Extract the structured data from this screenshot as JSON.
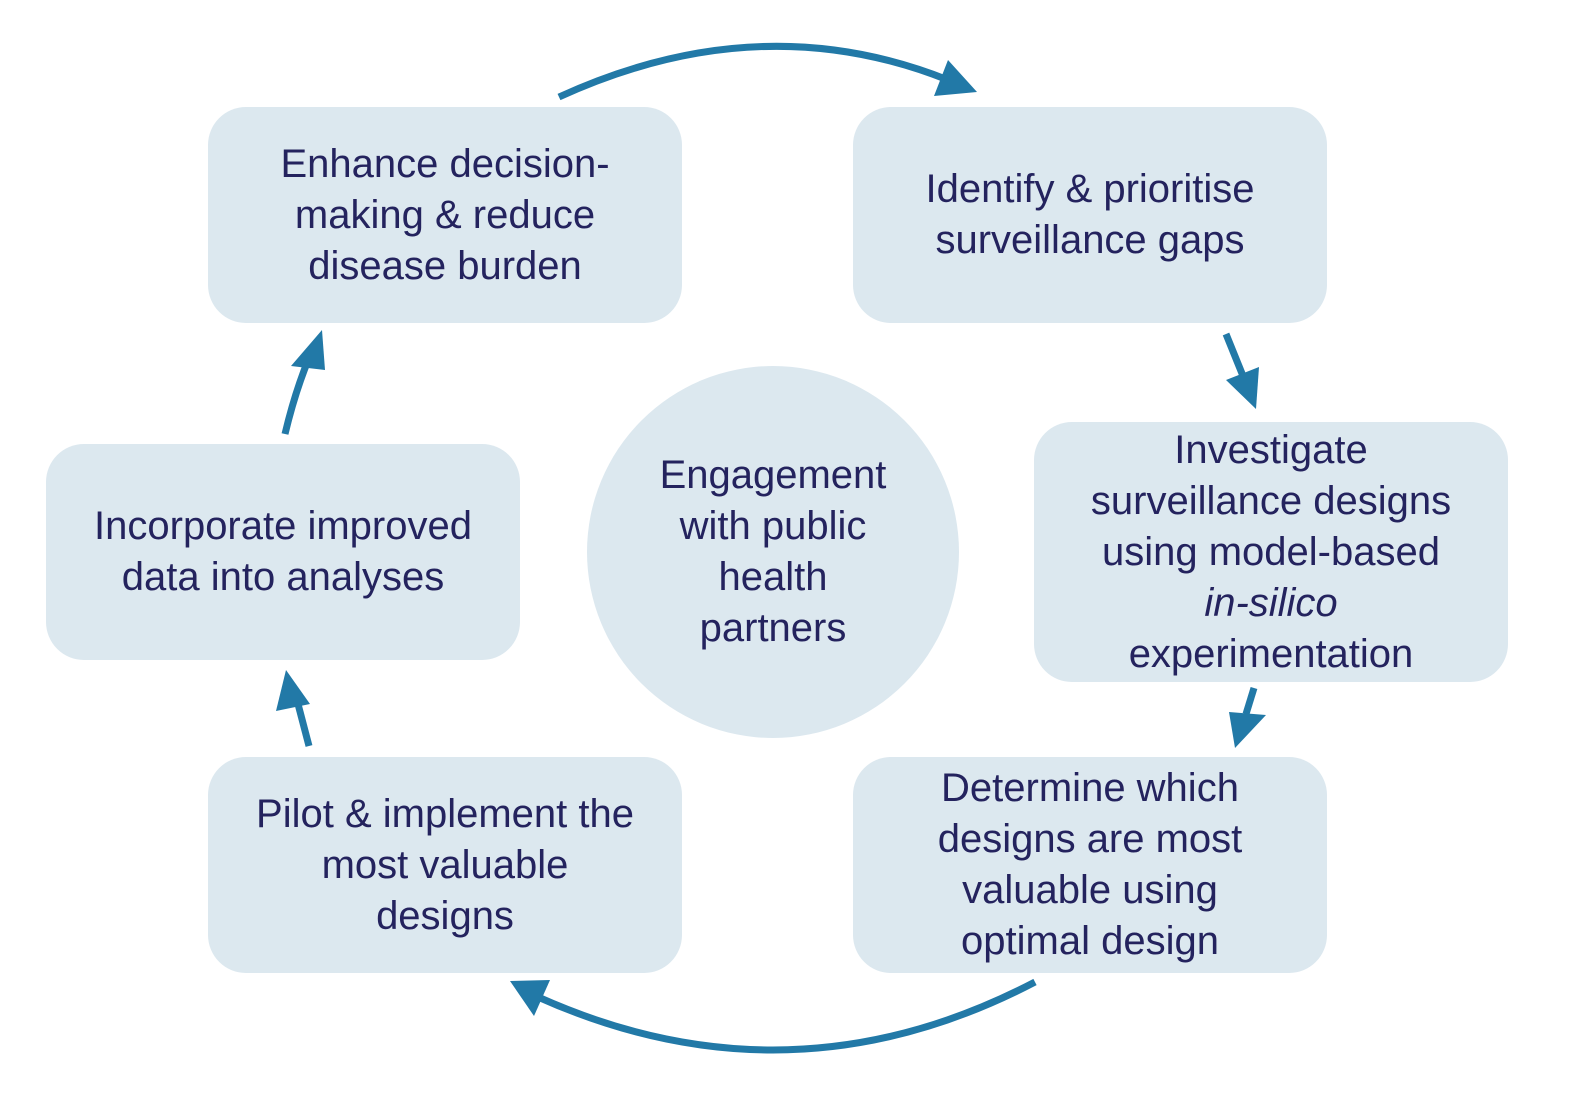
{
  "colors": {
    "box_fill": "#dce8ef",
    "text": "#24235e",
    "arrow": "#2279a7"
  },
  "center": {
    "lines": [
      "Engagement",
      "with public",
      "health",
      "partners"
    ]
  },
  "steps": [
    {
      "lines": [
        "Enhance decision-",
        "making & reduce",
        "disease burden"
      ]
    },
    {
      "lines": [
        "Identify & prioritise",
        "surveillance gaps"
      ]
    },
    {
      "lines": [
        "Investigate",
        "surveillance designs",
        "using model-based",
        "in-silico",
        "experimentation"
      ]
    },
    {
      "lines": [
        "Determine which",
        "designs are most",
        "valuable using",
        "optimal design"
      ]
    },
    {
      "lines": [
        "Pilot & implement the",
        "most valuable",
        "designs"
      ]
    },
    {
      "lines": [
        "Incorporate improved",
        "data into analyses"
      ]
    }
  ],
  "icons": [
    "arrow-icon"
  ]
}
